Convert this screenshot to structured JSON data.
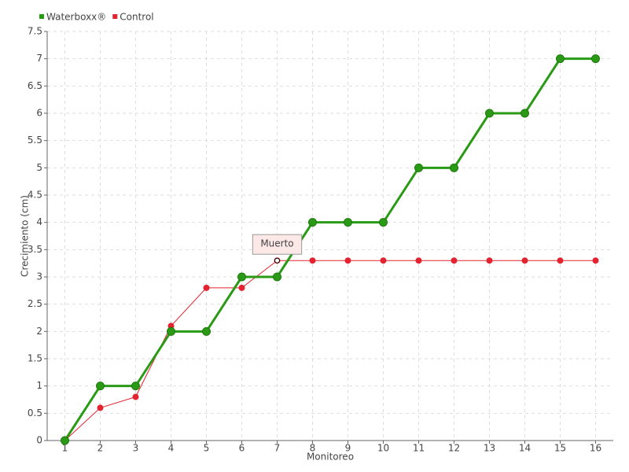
{
  "chart_data": {
    "type": "line",
    "x_label": "Monitoreo",
    "y_label": "Crecimiento (cm)",
    "categories": [
      "1",
      "2",
      "3",
      "4",
      "5",
      "6",
      "7",
      "8",
      "9",
      "10",
      "11",
      "12",
      "13",
      "14",
      "15",
      "16"
    ],
    "series": [
      {
        "name": "Waterboxx®",
        "color": "#2a9a16",
        "values": [
          0,
          1,
          1,
          2,
          2,
          3,
          3,
          4,
          4,
          4,
          5,
          5,
          6,
          6,
          7,
          7
        ]
      },
      {
        "name": "Control",
        "color": "#e3232f",
        "values": [
          0,
          0.6,
          0.8,
          2.1,
          2.8,
          2.8,
          3.3,
          3.3,
          3.3,
          3.3,
          3.3,
          3.3,
          3.3,
          3.3,
          3.3,
          3.3
        ]
      }
    ],
    "ylim": [
      0,
      7.5
    ],
    "yticks": [
      0,
      0.5,
      1,
      1.5,
      2,
      2.5,
      3,
      3.5,
      4,
      4.5,
      5,
      5.5,
      6,
      6.5,
      7,
      7.5
    ],
    "grid": true,
    "legend": "top-left",
    "annotations": [
      {
        "text": "Muerto",
        "x": "7",
        "series": "Control"
      }
    ]
  }
}
